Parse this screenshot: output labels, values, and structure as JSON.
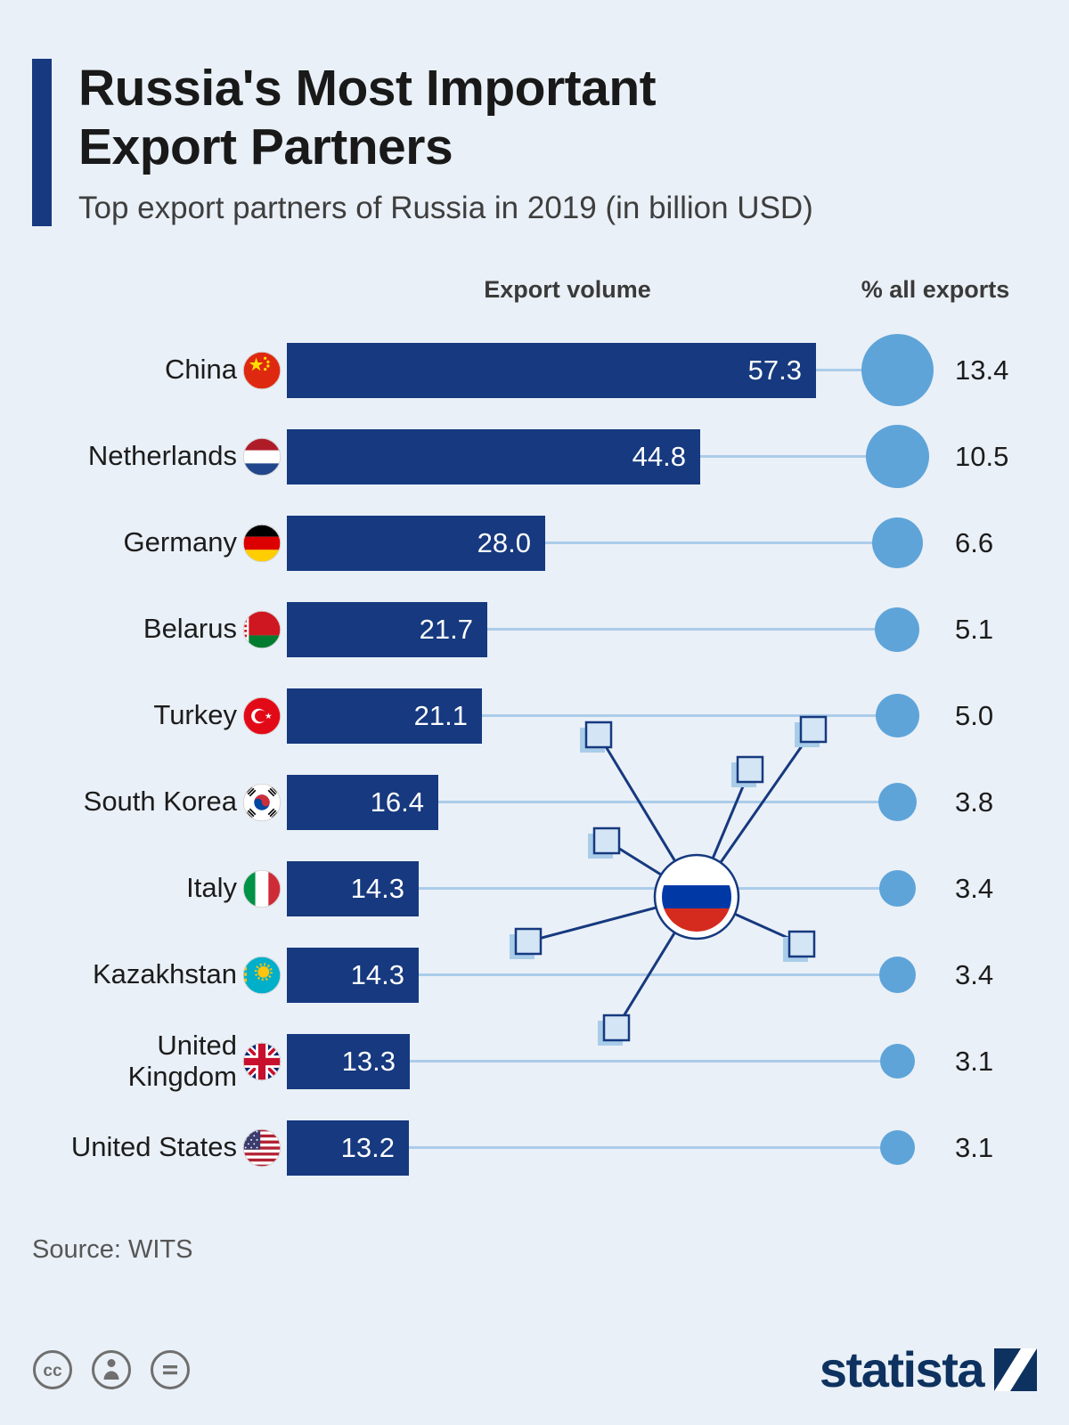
{
  "header": {
    "title": "Russia's Most Important\nExport Partners",
    "subtitle": "Top export partners of Russia in 2019 (in billion USD)"
  },
  "columns": {
    "bar_header": "Export volume",
    "circle_header": "% all exports"
  },
  "chart_data": {
    "type": "bar",
    "title": "Russia's Most Important Export Partners",
    "subtitle": "Top export partners of Russia in 2019 (in billion USD)",
    "unit": "billion USD",
    "orientation": "horizontal",
    "xlim": [
      0,
      60
    ],
    "grid": false,
    "legend": "none",
    "categories": [
      "China",
      "Netherlands",
      "Germany",
      "Belarus",
      "Turkey",
      "South Korea",
      "Italy",
      "Kazakhstan",
      "United Kingdom",
      "United States"
    ],
    "series": [
      {
        "name": "Export volume (billion USD)",
        "values": [
          57.3,
          44.8,
          28.0,
          21.7,
          21.1,
          16.4,
          14.3,
          14.3,
          13.3,
          13.2
        ]
      },
      {
        "name": "% all exports",
        "values": [
          13.4,
          10.5,
          6.6,
          5.1,
          5.0,
          3.8,
          3.4,
          3.4,
          3.1,
          3.1
        ]
      }
    ],
    "rows": [
      {
        "label": "China",
        "flag": "cn",
        "flag_icon": "china-flag-icon",
        "value": "57.3",
        "pct": "13.4"
      },
      {
        "label": "Netherlands",
        "flag": "nl",
        "flag_icon": "netherlands-flag-icon",
        "value": "44.8",
        "pct": "10.5"
      },
      {
        "label": "Germany",
        "flag": "de",
        "flag_icon": "germany-flag-icon",
        "value": "28.0",
        "pct": "6.6"
      },
      {
        "label": "Belarus",
        "flag": "by",
        "flag_icon": "belarus-flag-icon",
        "value": "21.7",
        "pct": "5.1"
      },
      {
        "label": "Turkey",
        "flag": "tr",
        "flag_icon": "turkey-flag-icon",
        "value": "21.1",
        "pct": "5.0"
      },
      {
        "label": "South Korea",
        "flag": "kr",
        "flag_icon": "south-korea-flag-icon",
        "value": "16.4",
        "pct": "3.8"
      },
      {
        "label": "Italy",
        "flag": "it",
        "flag_icon": "italy-flag-icon",
        "value": "14.3",
        "pct": "3.4"
      },
      {
        "label": "Kazakhstan",
        "flag": "kz",
        "flag_icon": "kazakhstan-flag-icon",
        "value": "14.3",
        "pct": "3.4"
      },
      {
        "label": "United\nKingdom",
        "flag": "gb",
        "flag_icon": "united-kingdom-flag-icon",
        "value": "13.3",
        "pct": "3.1"
      },
      {
        "label": "United States",
        "flag": "us",
        "flag_icon": "united-states-flag-icon",
        "value": "13.2",
        "pct": "3.1"
      }
    ],
    "decoration": "russia-flag-hub-network-illustration"
  },
  "footer": {
    "source": "Source: WITS",
    "brand": "statista",
    "license_icons": [
      "creative-commons-icon",
      "cc-attribution-icon",
      "cc-no-derivatives-icon"
    ]
  },
  "colors": {
    "background": "#eaf0f7",
    "navy": "#16397f",
    "light_blue": "#5ea4d9",
    "connector": "#abccea"
  }
}
